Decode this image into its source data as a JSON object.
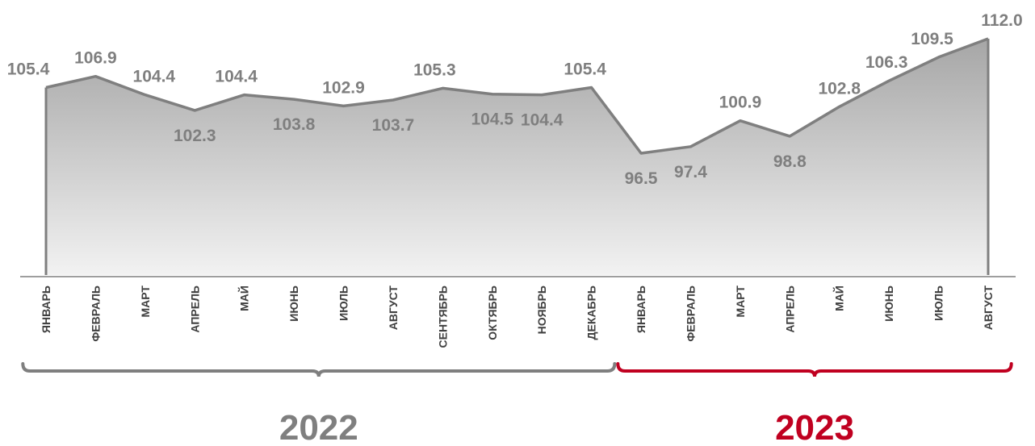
{
  "chart_data": {
    "type": "area",
    "title": "",
    "xlabel": "",
    "ylabel": "",
    "ylim": [
      80,
      113
    ],
    "grid": false,
    "legend": "none",
    "categories": [
      "ЯНВАРЬ",
      "ФЕВРАЛЬ",
      "МАРТ",
      "АПРЕЛЬ",
      "МАЙ",
      "ИЮНЬ",
      "ИЮЛЬ",
      "АВГУСТ",
      "СЕНТЯБРЬ",
      "ОКТЯБРЬ",
      "НОЯБРЬ",
      "ДЕКАБРЬ",
      "ЯНВАРЬ",
      "ФЕВРАЛЬ",
      "МАРТ",
      "АПРЕЛЬ",
      "МАЙ",
      "ИЮНЬ",
      "ИЮЛЬ",
      "АВГУСТ"
    ],
    "series": [
      {
        "values": [
          105.4,
          106.9,
          104.4,
          102.3,
          104.4,
          103.8,
          102.9,
          103.7,
          105.3,
          104.5,
          104.4,
          105.4,
          96.5,
          97.4,
          100.9,
          98.8,
          102.8,
          106.3,
          109.5,
          112.0
        ]
      }
    ],
    "value_labels": [
      "105.4",
      "106.9",
      "104.4",
      "102.3",
      "104.4",
      "103.8",
      "102.9",
      "103.7",
      "105.3",
      "104.5",
      "104.4",
      "105.4",
      "96.5",
      "97.4",
      "100.9",
      "98.8",
      "102.8",
      "106.3",
      "109.5",
      "112.0"
    ],
    "year_groups": [
      {
        "label": "2022",
        "from_index": 0,
        "to_index": 11,
        "color": "#7f7f7f"
      },
      {
        "label": "2023",
        "from_index": 12,
        "to_index": 19,
        "color": "#c00020"
      }
    ],
    "colors": {
      "line": "#7f7f7f",
      "fill_top": "#a6a6a6",
      "fill_bottom": "#f2f2f2",
      "axis": "#7f7f7f"
    }
  }
}
